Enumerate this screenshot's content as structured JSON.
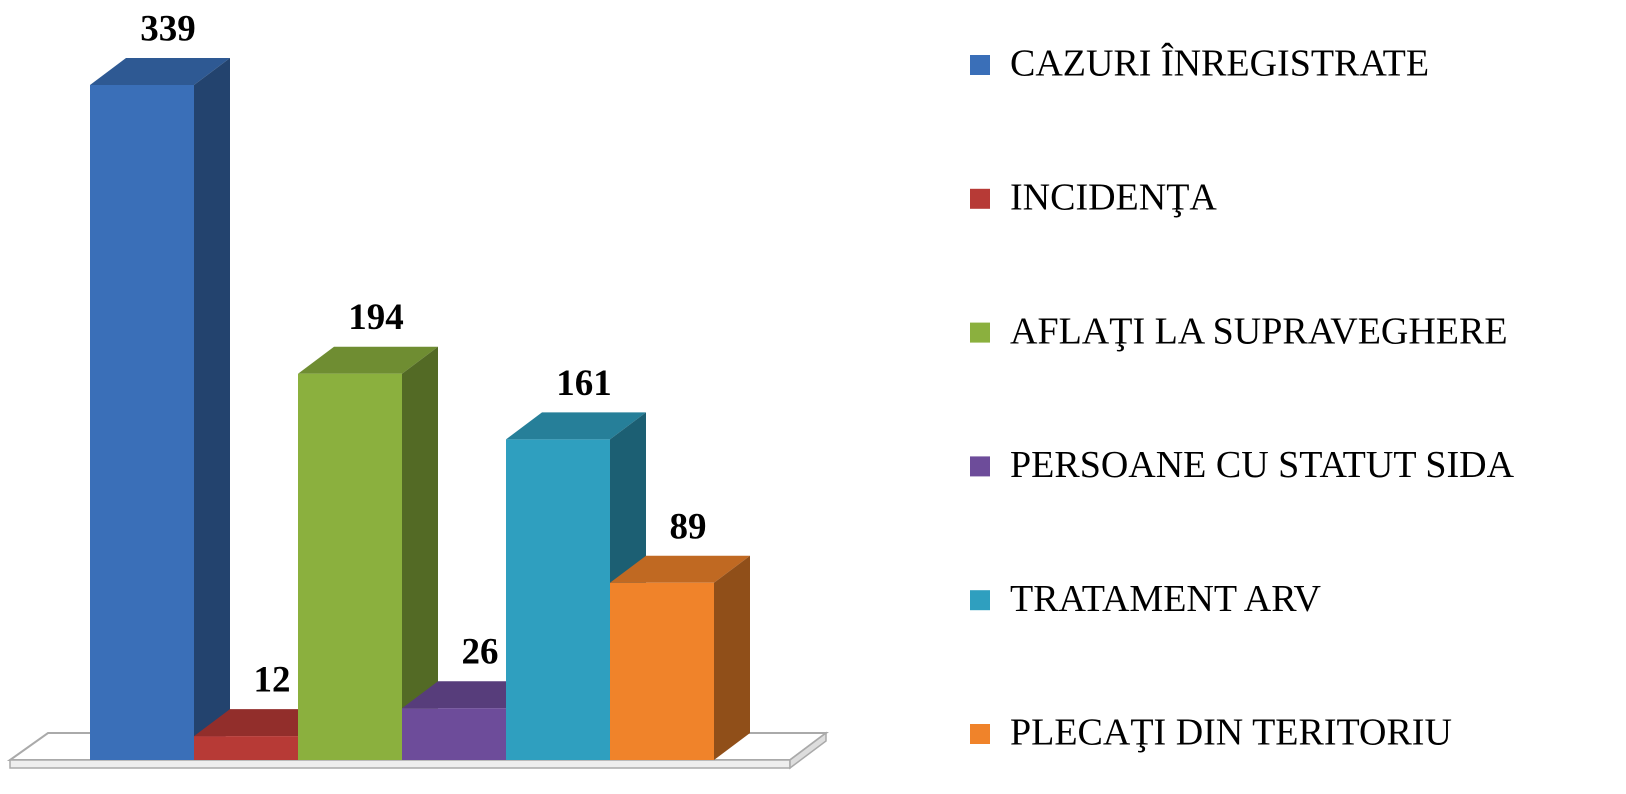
{
  "chart_data": {
    "type": "bar3d",
    "categories": [
      null
    ],
    "series": [
      {
        "name": "CAZURI ÎNREGISTRATE",
        "color": "#3a6fb8",
        "values": [
          339
        ]
      },
      {
        "name": "INCIDENŢA",
        "color": "#b73a36",
        "values": [
          12
        ]
      },
      {
        "name": "AFLAŢI LA SUPRAVEGHERE",
        "color": "#8bb03e",
        "values": [
          194
        ]
      },
      {
        "name": "PERSOANE CU STATUT SIDA",
        "color": "#6d4c9a",
        "values": [
          26
        ]
      },
      {
        "name": "TRATAMENT ARV",
        "color": "#2f9fbf",
        "values": [
          161
        ]
      },
      {
        "name": "PLECAŢI DIN TERITORIU",
        "color": "#f0832a",
        "values": [
          89
        ]
      }
    ],
    "legend": "right"
  }
}
